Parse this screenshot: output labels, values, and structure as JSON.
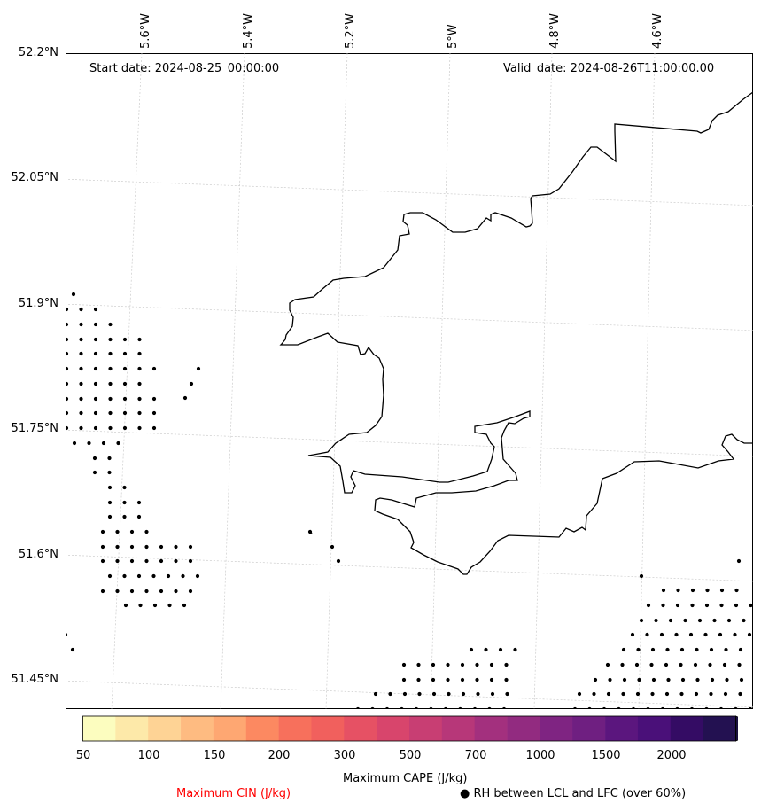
{
  "map": {
    "start_date": "Start date: 2024-08-25_00:00:00",
    "valid_date": "Valid_date: 2024-08-26T11:00:00.00",
    "lat_labels": [
      "52.2°N",
      "52.05°N",
      "51.9°N",
      "51.75°N",
      "51.6°N",
      "51.45°N"
    ],
    "lon_labels": [
      "5.6°W",
      "5.4°W",
      "5.2°W",
      "5°W",
      "4.8°W",
      "4.6°W"
    ],
    "coastline_color": "#000000",
    "grid_color": "#cccccc",
    "stipple_meaning": "RH between LCL and LFC (over 60%)"
  },
  "colorbar": {
    "title": "Maximum CAPE (J/kg)",
    "ticks": [
      "50",
      "100",
      "150",
      "200",
      "300",
      "500",
      "700",
      "1000",
      "1500",
      "2000"
    ],
    "colors": [
      "#fcfdbf",
      "#fde9a9",
      "#fed395",
      "#febb81",
      "#fea772",
      "#fc8961",
      "#f7705c",
      "#f1605d",
      "#e65164",
      "#d8456c",
      "#c83e73",
      "#b73779",
      "#a3307e",
      "#922b80",
      "#7f2482",
      "#6f1f81",
      "#5b167e",
      "#4a1079",
      "#340c64",
      "#231151"
    ],
    "extend_color": "#180f3d"
  },
  "legend": {
    "cin_label": "Maximum CIN (J/kg)",
    "cin_color": "#ff0000",
    "rh_marker": "●",
    "rh_label": "RH between LCL and LFC (over 60%)"
  }
}
